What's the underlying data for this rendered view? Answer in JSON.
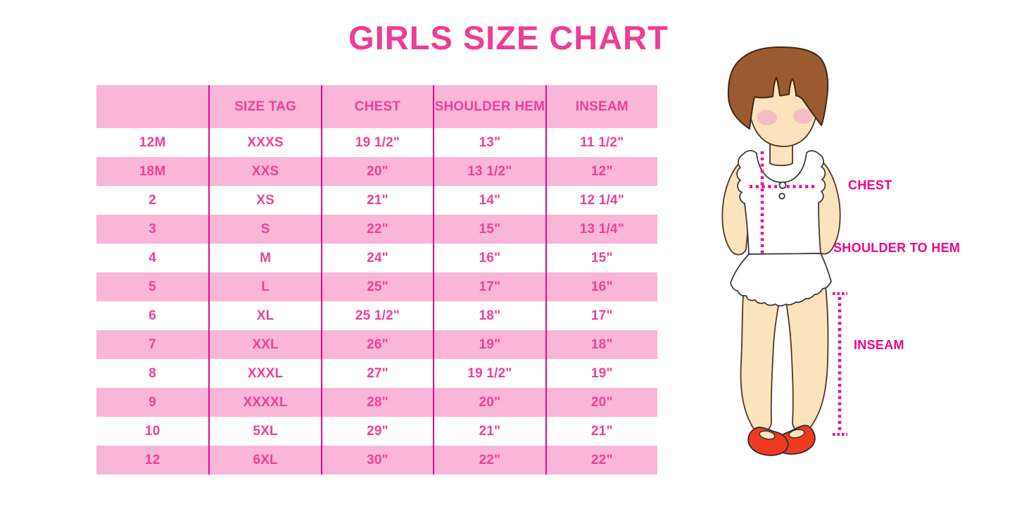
{
  "title": "GIRLS SIZE CHART",
  "chart_data": {
    "type": "table",
    "title": "GIRLS SIZE CHART",
    "columns": [
      "",
      "SIZE TAG",
      "CHEST",
      "SHOULDER HEM",
      "INSEAM"
    ],
    "rows": [
      [
        "12M",
        "XXXS",
        "19 1/2\"",
        "13\"",
        "11 1/2\""
      ],
      [
        "18M",
        "XXS",
        "20\"",
        "13 1/2\"",
        "12\""
      ],
      [
        "2",
        "XS",
        "21\"",
        "14\"",
        "12 1/4\""
      ],
      [
        "3",
        "S",
        "22\"",
        "15\"",
        "13 1/4\""
      ],
      [
        "4",
        "M",
        "24\"",
        "16\"",
        "15\""
      ],
      [
        "5",
        "L",
        "25\"",
        "17\"",
        "16\""
      ],
      [
        "6",
        "XL",
        "25 1/2\"",
        "18\"",
        "17\""
      ],
      [
        "7",
        "XXL",
        "26\"",
        "19\"",
        "18\""
      ],
      [
        "8",
        "XXXL",
        "27\"",
        "19 1/2\"",
        "19\""
      ],
      [
        "9",
        "XXXXL",
        "28\"",
        "20\"",
        "20\""
      ],
      [
        "10",
        "5XL",
        "29\"",
        "21\"",
        "21\""
      ],
      [
        "12",
        "6XL",
        "30\"",
        "22\"",
        "22\""
      ]
    ],
    "row_stripe_pattern": "white/pink alternating, header pink",
    "annotations": [
      "CHEST",
      "SHOULDER TO HEM",
      "INSEAM"
    ]
  },
  "figure": {
    "description": "cartoon girl with brown bob hair, white sleeveless ruffled top, bare legs, red shoes, with dotted measurement guides",
    "labels": {
      "chest": "CHEST",
      "shoulder_to_hem": "SHOULDER TO HEM",
      "inseam": "INSEAM"
    }
  },
  "colors": {
    "title_pink": "#EE3D96",
    "table_text_pink": "#EF3F9B",
    "row_pink": "#F9B6D9",
    "divider_magenta": "#E5098C",
    "label_magenta": "#F1048C",
    "hair_brown": "#9C5A30",
    "skin": "#FBE3BD",
    "blush": "#F3ADC9",
    "shoe_red": "#EF3A21"
  }
}
